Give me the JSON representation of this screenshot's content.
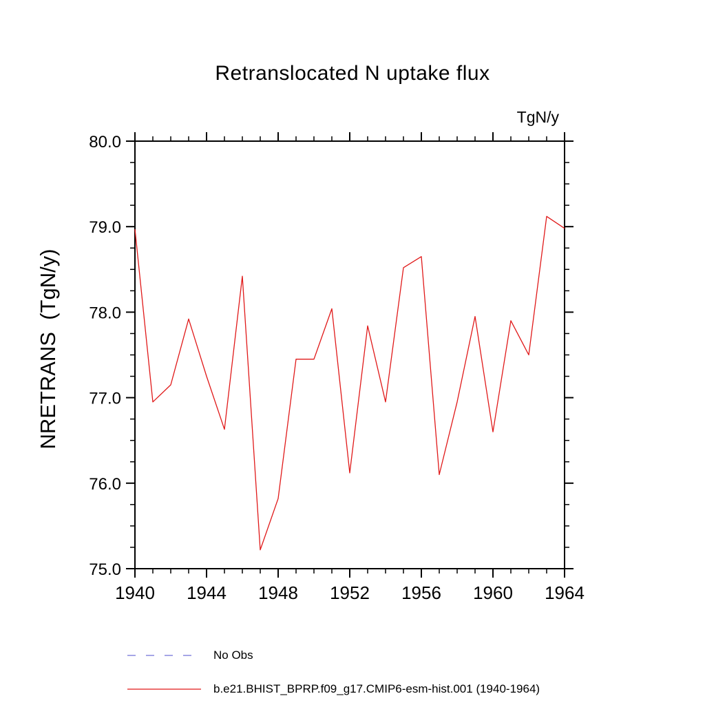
{
  "title": "Retranslocated N uptake flux",
  "unit_label": "TgN/y",
  "y_axis_label": "NRETRANS  (TgN/y)",
  "legend": [
    {
      "label": "No Obs",
      "color": "#8888dd",
      "style": "dashed"
    },
    {
      "label": "b.e21.BHIST_BPRP.f09_g17.CMIP6-esm-hist.001 (1940-1964)",
      "color": "#e01818",
      "style": "solid"
    }
  ],
  "chart_data": {
    "type": "line",
    "title": "Retranslocated N uptake flux",
    "xlabel": "",
    "ylabel": "NRETRANS (TgN/y)",
    "unit": "TgN/y",
    "xlim": [
      1940,
      1964
    ],
    "ylim": [
      75.0,
      80.0
    ],
    "xticks": [
      1940,
      1944,
      1948,
      1952,
      1956,
      1960,
      1964
    ],
    "xtick_labels": [
      "1940",
      "1944",
      "1948",
      "1952",
      "1956",
      "1960",
      "1964"
    ],
    "yticks": [
      75.0,
      76.0,
      77.0,
      78.0,
      79.0,
      80.0
    ],
    "ytick_labels": [
      "75.0",
      "76.0",
      "77.0",
      "78.0",
      "79.0",
      "80.0"
    ],
    "x_minor_step": 1,
    "y_minor_step": 0.25,
    "grid": false,
    "legend_position": "bottom-left",
    "x": [
      1940,
      1941,
      1942,
      1943,
      1944,
      1945,
      1946,
      1947,
      1948,
      1949,
      1950,
      1951,
      1952,
      1953,
      1954,
      1955,
      1956,
      1957,
      1958,
      1959,
      1960,
      1961,
      1962,
      1963,
      1964
    ],
    "series": [
      {
        "name": "b.e21.BHIST_BPRP.f09_g17.CMIP6-esm-hist.001 (1940-1964)",
        "color": "#e01818",
        "values": [
          78.97,
          76.95,
          77.15,
          77.92,
          77.25,
          76.63,
          78.42,
          75.22,
          75.82,
          77.45,
          77.45,
          78.04,
          76.12,
          77.84,
          76.95,
          78.52,
          78.65,
          76.1,
          76.95,
          77.95,
          76.6,
          77.9,
          77.5,
          79.12,
          78.98
        ]
      }
    ]
  }
}
